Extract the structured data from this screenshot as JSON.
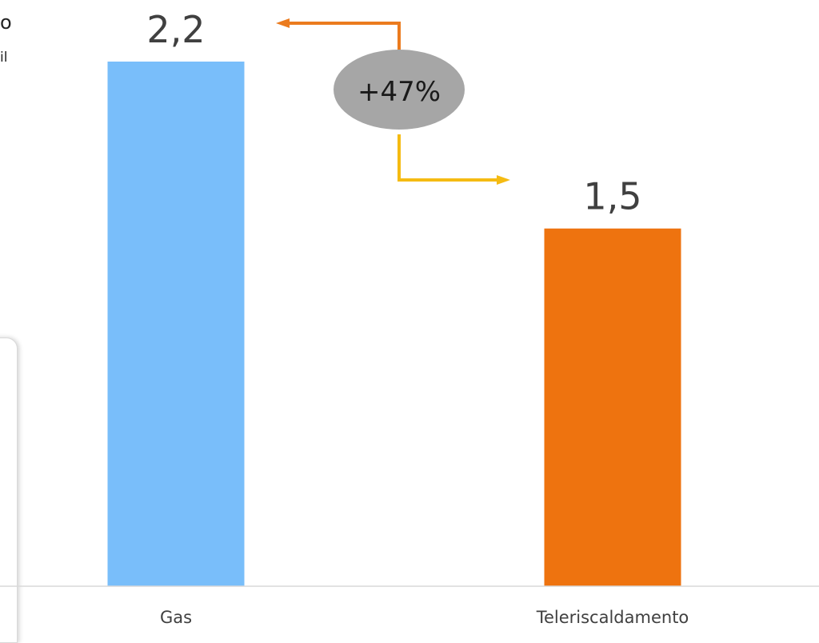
{
  "fragments": {
    "left_text_1": "o",
    "left_text_2": "il"
  },
  "chart_data": {
    "type": "bar",
    "categories": [
      "Gas",
      "Teleriscaldamento"
    ],
    "values": [
      2.2,
      1.5
    ],
    "data_labels": [
      "2,2",
      "1,5"
    ],
    "title": "",
    "xlabel": "",
    "ylabel": "",
    "ylim": [
      0,
      2.2
    ],
    "grid": false,
    "legend": "none",
    "colors": [
      "#79BEFA",
      "#EE730F"
    ],
    "annotation": {
      "text": "+47%",
      "from_category": "Teleriscaldamento",
      "to_category": "Gas",
      "bubble_color": "#A6A6A6",
      "arrow_colors": [
        "#EB7B1E",
        "#F5BB12"
      ]
    }
  }
}
